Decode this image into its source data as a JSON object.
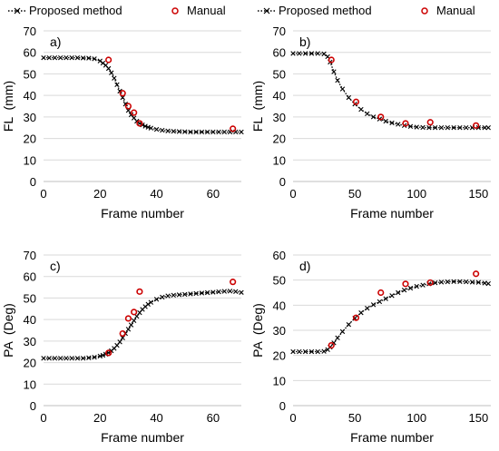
{
  "legend": {
    "proposed_label": "Proposed method",
    "manual_label": "Manual"
  },
  "colors": {
    "proposed": "#000000",
    "manual": "#cc0000",
    "grid": "#d9d9d9",
    "axis": "#bfbfbf"
  },
  "chart_data": [
    {
      "type": "line",
      "panel_label": "a)",
      "xlabel": "Frame number",
      "ylabel": "FL  (mm)",
      "xlim": [
        0,
        70
      ],
      "ylim": [
        0,
        70
      ],
      "xticks": [
        0,
        20,
        40,
        60
      ],
      "yticks": [
        0,
        10,
        20,
        30,
        40,
        50,
        60,
        70
      ],
      "grid": "horizontal",
      "legend_position": "top",
      "series": [
        {
          "name": "Proposed method",
          "style": "dotted-line-x-markers",
          "x": [
            0,
            2,
            4,
            6,
            8,
            10,
            12,
            14,
            16,
            18,
            20,
            21,
            22,
            23,
            24,
            25,
            26,
            27,
            28,
            29,
            30,
            31,
            32,
            33,
            34,
            35,
            36,
            37,
            38,
            40,
            42,
            44,
            46,
            48,
            50,
            52,
            54,
            56,
            58,
            60,
            62,
            64,
            66,
            68,
            70
          ],
          "y": [
            57.5,
            57.5,
            57.5,
            57.5,
            57.5,
            57.5,
            57.5,
            57.4,
            57.3,
            57,
            56,
            55,
            54,
            52.5,
            50.5,
            48,
            45,
            42,
            39,
            36,
            33,
            31,
            29.5,
            28,
            27,
            26.3,
            25.7,
            25.2,
            24.8,
            24.2,
            23.8,
            23.5,
            23.3,
            23.2,
            23.1,
            23,
            23,
            23,
            23,
            23,
            23,
            23,
            23,
            23,
            23
          ]
        },
        {
          "name": "Manual",
          "style": "circle-markers",
          "x": [
            23,
            28,
            30,
            32,
            34,
            67
          ],
          "y": [
            56.5,
            41,
            35,
            32,
            27,
            24.5
          ]
        }
      ]
    },
    {
      "type": "line",
      "panel_label": "b)",
      "xlabel": "Frame number",
      "ylabel": "FL  (mm)",
      "xlim": [
        0,
        160
      ],
      "ylim": [
        0,
        70
      ],
      "xticks": [
        0,
        50,
        100,
        150
      ],
      "yticks": [
        0,
        10,
        20,
        30,
        40,
        50,
        60,
        70
      ],
      "grid": "horizontal",
      "legend_position": "top",
      "series": [
        {
          "name": "Proposed method",
          "style": "dotted-line-x-markers",
          "x": [
            0,
            5,
            10,
            15,
            20,
            25,
            28,
            30,
            33,
            36,
            40,
            45,
            50,
            55,
            60,
            65,
            70,
            75,
            80,
            85,
            90,
            95,
            100,
            105,
            110,
            115,
            120,
            125,
            130,
            135,
            140,
            145,
            150,
            155,
            158
          ],
          "y": [
            59.5,
            59.5,
            59.5,
            59.5,
            59.5,
            59.3,
            58,
            55.5,
            51,
            47,
            43,
            39,
            36,
            33.5,
            31.5,
            30,
            29,
            28,
            27.2,
            26.6,
            26,
            25.6,
            25.3,
            25.1,
            25,
            25,
            25,
            25,
            25,
            25,
            25,
            25,
            25,
            25,
            25
          ]
        },
        {
          "name": "Manual",
          "style": "circle-markers",
          "x": [
            31,
            51,
            71,
            91,
            111,
            148
          ],
          "y": [
            56.5,
            37,
            30,
            27,
            27.5,
            26
          ]
        }
      ]
    },
    {
      "type": "line",
      "panel_label": "c)",
      "xlabel": "Frame number",
      "ylabel": "PA  (Deg)",
      "xlim": [
        0,
        70
      ],
      "ylim": [
        0,
        70
      ],
      "xticks": [
        0,
        20,
        40,
        60
      ],
      "yticks": [
        0,
        10,
        20,
        30,
        40,
        50,
        60,
        70
      ],
      "grid": "horizontal",
      "legend_position": "top",
      "series": [
        {
          "name": "Proposed method",
          "style": "dotted-line-x-markers",
          "x": [
            0,
            2,
            4,
            6,
            8,
            10,
            12,
            14,
            16,
            18,
            20,
            21,
            22,
            23,
            24,
            25,
            26,
            27,
            28,
            29,
            30,
            31,
            32,
            33,
            34,
            35,
            36,
            37,
            38,
            40,
            42,
            44,
            46,
            48,
            50,
            52,
            54,
            56,
            58,
            60,
            62,
            64,
            66,
            68,
            70
          ],
          "y": [
            22,
            22,
            22,
            22,
            22,
            22,
            22,
            22,
            22.2,
            22.5,
            23,
            23.4,
            23.9,
            24.6,
            25.5,
            26.6,
            28,
            29.6,
            31.5,
            33.5,
            35.5,
            37.5,
            39.5,
            41.5,
            43.2,
            44.7,
            46,
            47.1,
            48,
            49.4,
            50.4,
            51,
            51.3,
            51.5,
            51.7,
            51.9,
            52.1,
            52.3,
            52.5,
            52.7,
            52.9,
            53.1,
            53.2,
            53,
            52.6
          ]
        },
        {
          "name": "Manual",
          "style": "circle-markers",
          "x": [
            23,
            28,
            30,
            32,
            34,
            67
          ],
          "y": [
            24.5,
            33.5,
            40.5,
            43.5,
            53,
            57.5
          ]
        }
      ]
    },
    {
      "type": "line",
      "panel_label": "d)",
      "xlabel": "Frame number",
      "ylabel": "PA  (Deg)",
      "xlim": [
        0,
        160
      ],
      "ylim": [
        0,
        60
      ],
      "xticks": [
        0,
        50,
        100,
        150
      ],
      "yticks": [
        0,
        10,
        20,
        30,
        40,
        50,
        60
      ],
      "grid": "horizontal",
      "legend_position": "top",
      "series": [
        {
          "name": "Proposed method",
          "style": "dotted-line-x-markers",
          "x": [
            0,
            5,
            10,
            15,
            20,
            25,
            28,
            30,
            33,
            36,
            40,
            45,
            50,
            55,
            60,
            65,
            70,
            75,
            80,
            85,
            90,
            95,
            100,
            105,
            110,
            115,
            120,
            125,
            130,
            135,
            140,
            145,
            150,
            155,
            158
          ],
          "y": [
            21.5,
            21.5,
            21.5,
            21.5,
            21.5,
            21.6,
            22.3,
            23.3,
            25,
            27,
            29.5,
            32.3,
            34.8,
            37,
            38.8,
            40.2,
            41.4,
            42.6,
            43.8,
            45,
            46,
            46.8,
            47.5,
            48,
            48.5,
            48.9,
            49.2,
            49.3,
            49.4,
            49.4,
            49.3,
            49.2,
            49.1,
            48.8,
            48.6
          ]
        },
        {
          "name": "Manual",
          "style": "circle-markers",
          "x": [
            31,
            51,
            71,
            91,
            111,
            148
          ],
          "y": [
            24,
            35,
            45,
            48.5,
            49,
            52.5
          ]
        }
      ]
    }
  ]
}
